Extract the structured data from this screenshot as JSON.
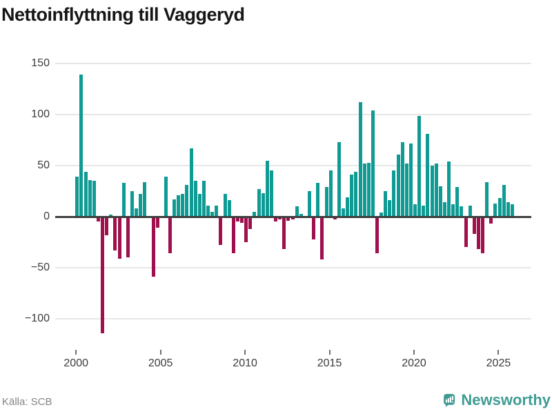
{
  "title": "Nettoinflyttning till Vaggeryd",
  "source_label": "Källa: SCB",
  "brand": {
    "name": "Newsworthy",
    "logo_icon": "bar-chart-speech-bubble-icon",
    "color": "#3f9c94"
  },
  "colors": {
    "positive_bar": "#0f9b94",
    "negative_bar": "#9f104c",
    "gridline": "#e7e7e7",
    "zero_line": "#3e3e3e",
    "axis_text": "#3b3b3b",
    "source_text": "#848484",
    "title_text": "#161616"
  },
  "chart_data": {
    "type": "bar",
    "title": "Nettoinflyttning till Vaggeryd",
    "x_unit": "quarter",
    "start_period": "2000 Q1",
    "end_period": "2025 Q4",
    "start_year": 2000,
    "quarters_per_year": 4,
    "grid": true,
    "ylim": [
      -125,
      160
    ],
    "ytick_values": [
      150,
      100,
      50,
      0,
      -50,
      -100
    ],
    "ytick_labels": [
      "150",
      "100",
      "50",
      "0",
      "−50",
      "−100"
    ],
    "xtick_years": [
      2000,
      2005,
      2010,
      2015,
      2020,
      2025
    ],
    "xtick_labels": [
      "2000",
      "2005",
      "2010",
      "2015",
      "2020",
      "2025"
    ],
    "values": [
      39,
      139,
      44,
      36,
      35,
      -4,
      -113,
      -17,
      2,
      -32,
      -40,
      33,
      -39,
      25,
      8,
      22,
      34,
      0,
      -58,
      -10,
      0,
      39,
      -35,
      17,
      21,
      22,
      31,
      67,
      35,
      22,
      35,
      11,
      5,
      11,
      -27,
      22,
      16,
      -35,
      -4,
      -5,
      -24,
      -11,
      5,
      27,
      23,
      55,
      45,
      -4,
      -2,
      -31,
      -3,
      -2,
      10,
      3,
      0,
      25,
      -21,
      33,
      -41,
      29,
      45,
      -2,
      73,
      8,
      19,
      41,
      44,
      112,
      52,
      53,
      104,
      -35,
      4,
      25,
      16,
      45,
      61,
      73,
      52,
      72,
      12,
      99,
      11,
      81,
      50,
      52,
      30,
      14,
      54,
      12,
      29,
      10,
      -29,
      11,
      -16,
      -31,
      -35,
      34,
      -6,
      13,
      18,
      31,
      14,
      12
    ]
  }
}
